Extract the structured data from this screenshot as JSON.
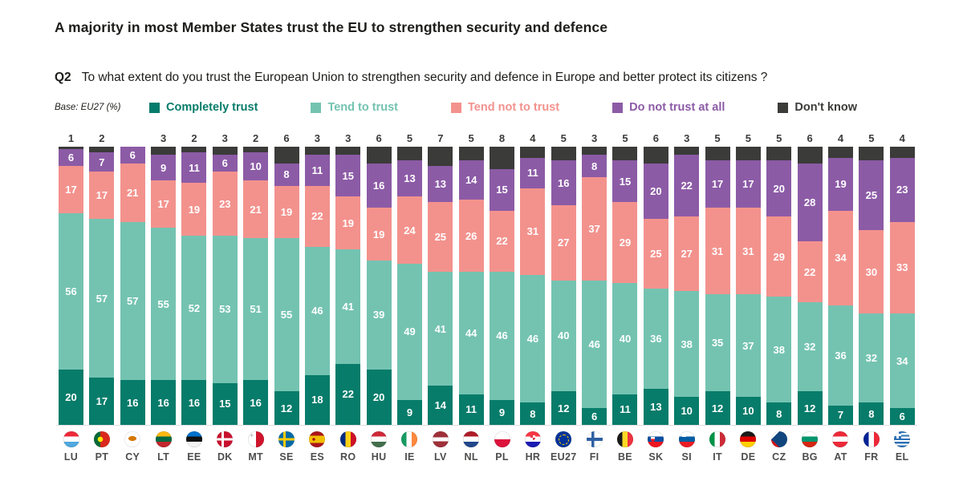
{
  "title": "A majority in most Member States trust the EU to strengthen security and defence",
  "question": {
    "label": "Q2",
    "text": "To what extent do you trust the European Union to strengthen security and defence in Europe and better protect its citizens ?"
  },
  "base_note": "Base: EU27 (%)",
  "colors": {
    "completely_trust": "#077C6A",
    "tend_to_trust": "#74C3B1",
    "tend_not_to_trust": "#F3928D",
    "do_not_trust_at_all": "#8C5BA6",
    "dont_know": "#3B3B3A",
    "title_text": "#1D1D1B",
    "axis_text": "#4D4D4C"
  },
  "legend": [
    {
      "key": "completely_trust",
      "label": "Completely trust",
      "color": "#077C6A"
    },
    {
      "key": "tend_to_trust",
      "label": "Tend to trust",
      "color": "#74C3B1"
    },
    {
      "key": "tend_not_to_trust",
      "label": "Tend not to trust",
      "color": "#F3928D"
    },
    {
      "key": "do_not_trust_at_all",
      "label": "Do not trust at all",
      "color": "#8C5BA6"
    },
    {
      "key": "dont_know",
      "label": "Don't know",
      "color": "#3B3B3A"
    }
  ],
  "chart_data": {
    "type": "bar",
    "stacked": true,
    "percent": true,
    "ylim": [
      0,
      100
    ],
    "legend_position": "top",
    "grid": false,
    "label_min_value": 6,
    "categories": [
      "LU",
      "PT",
      "CY",
      "LT",
      "EE",
      "DK",
      "MT",
      "SE",
      "ES",
      "RO",
      "HU",
      "IE",
      "LV",
      "NL",
      "PL",
      "HR",
      "EU27",
      "FI",
      "BE",
      "SK",
      "SI",
      "IT",
      "DE",
      "CZ",
      "BG",
      "AT",
      "FR",
      "EL"
    ],
    "flags": [
      "lu",
      "pt",
      "cy",
      "lt",
      "ee",
      "dk",
      "mt",
      "se",
      "es",
      "ro",
      "hu",
      "ie",
      "lv",
      "nl",
      "pl",
      "hr",
      "eu27",
      "fi",
      "be",
      "sk",
      "si",
      "it",
      "de",
      "cz",
      "bg",
      "at",
      "fr",
      "el"
    ],
    "series": [
      {
        "name": "Completely trust",
        "values": [
          20,
          17,
          16,
          16,
          16,
          15,
          16,
          12,
          18,
          22,
          20,
          9,
          14,
          11,
          9,
          8,
          12,
          6,
          11,
          13,
          10,
          12,
          10,
          8,
          12,
          7,
          8,
          6
        ]
      },
      {
        "name": "Tend to trust",
        "values": [
          56,
          57,
          57,
          55,
          52,
          53,
          51,
          55,
          46,
          41,
          39,
          49,
          41,
          44,
          46,
          46,
          40,
          46,
          40,
          36,
          38,
          35,
          37,
          38,
          32,
          36,
          32,
          34
        ]
      },
      {
        "name": "Tend not to trust",
        "values": [
          17,
          17,
          21,
          17,
          19,
          23,
          21,
          19,
          22,
          19,
          19,
          24,
          25,
          26,
          22,
          31,
          27,
          37,
          29,
          25,
          27,
          31,
          31,
          29,
          22,
          34,
          30,
          33
        ]
      },
      {
        "name": "Do not trust at all",
        "values": [
          6,
          7,
          6,
          9,
          11,
          6,
          10,
          8,
          11,
          15,
          16,
          13,
          13,
          14,
          15,
          11,
          16,
          8,
          15,
          20,
          22,
          17,
          17,
          20,
          28,
          19,
          25,
          23
        ]
      },
      {
        "name": "Don't know",
        "values": [
          1,
          2,
          0,
          3,
          2,
          3,
          2,
          6,
          3,
          3,
          6,
          5,
          7,
          5,
          8,
          4,
          5,
          3,
          5,
          6,
          3,
          5,
          5,
          5,
          6,
          4,
          5,
          4
        ]
      }
    ]
  }
}
